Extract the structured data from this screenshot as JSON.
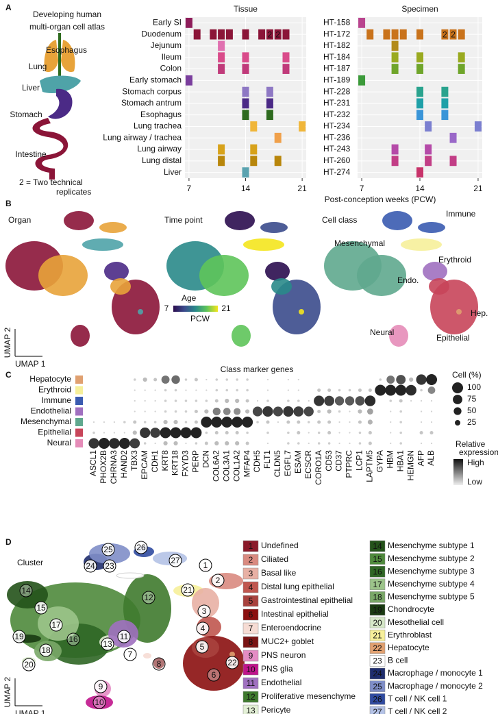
{
  "panel_labels": [
    "A",
    "B",
    "C",
    "D"
  ],
  "panel_a": {
    "title_lines": [
      "Developing human",
      "multi-organ cell atlas"
    ],
    "organs": [
      {
        "label": "Esophagus",
        "color": "#3a7d2c"
      },
      {
        "label": "Lung",
        "color": "#e8a33a"
      },
      {
        "label": "Liver",
        "color": "#4fa3a8"
      },
      {
        "label": "Stomach",
        "color": "#4b2a86"
      },
      {
        "label": "Intestine",
        "color": "#8b1538"
      }
    ],
    "note_lines": [
      "2 = Two technical",
      "replicates"
    ],
    "x_label": "Post-conception weeks (PCW)",
    "grids": [
      {
        "title": "Tissue",
        "xlim": [
          6.5,
          21.5
        ],
        "xticks": [
          7,
          14,
          21
        ],
        "rows": [
          {
            "label": "Early SI",
            "color": "#8e1d5a",
            "weeks": [
              7
            ]
          },
          {
            "label": "Duodenum",
            "color": "#8b1538",
            "weeks": [
              8,
              10,
              11,
              12,
              14,
              16,
              17,
              18,
              19
            ],
            "replicates": [
              {
                "week": 17,
                "count": 2
              },
              {
                "week": 18,
                "count": 2
              }
            ]
          },
          {
            "label": "Jejunum",
            "color": "#e070b0",
            "weeks": [
              11
            ]
          },
          {
            "label": "Ileum",
            "color": "#d94b8a",
            "weeks": [
              11,
              14,
              19
            ]
          },
          {
            "label": "Colon",
            "color": "#c03a7a",
            "weeks": [
              11,
              14,
              19
            ]
          },
          {
            "label": "Early stomach",
            "color": "#7a3e9d",
            "weeks": [
              7
            ]
          },
          {
            "label": "Stomach corpus",
            "color": "#8e78c4",
            "weeks": [
              14,
              17
            ]
          },
          {
            "label": "Stomach antrum",
            "color": "#4b2a86",
            "weeks": [
              14,
              17
            ]
          },
          {
            "label": "Esophagus",
            "color": "#2e6b1f",
            "weeks": [
              14,
              17
            ]
          },
          {
            "label": "Lung trachea",
            "color": "#f0b63a",
            "weeks": [
              15,
              21
            ]
          },
          {
            "label": "Lung airway / trachea",
            "color": "#f0a04a",
            "weeks": [
              18
            ]
          },
          {
            "label": "Lung airway",
            "color": "#d7a21a",
            "weeks": [
              11,
              15
            ]
          },
          {
            "label": "Lung distal",
            "color": "#b8860b",
            "weeks": [
              11,
              15,
              18
            ]
          },
          {
            "label": "Liver",
            "color": "#5aa3b0",
            "weeks": [
              14
            ]
          }
        ]
      },
      {
        "title": "Specimen",
        "xlim": [
          6.5,
          21.5
        ],
        "xticks": [
          7,
          14,
          21
        ],
        "rows": [
          {
            "label": "HT-158",
            "color": "#b9448e",
            "weeks": [
              7
            ]
          },
          {
            "label": "HT-172",
            "color": "#c9731c",
            "weeks": [
              8,
              10,
              11,
              12,
              14,
              17,
              18,
              19
            ],
            "replicates": [
              {
                "week": 17,
                "count": 2
              },
              {
                "week": 18,
                "count": 2
              }
            ]
          },
          {
            "label": "HT-182",
            "color": "#b28b1a",
            "weeks": [
              11
            ]
          },
          {
            "label": "HT-184",
            "color": "#9aaa20",
            "weeks": [
              11,
              14,
              19
            ]
          },
          {
            "label": "HT-187",
            "color": "#6fa52a",
            "weeks": [
              11,
              14,
              19
            ]
          },
          {
            "label": "HT-189",
            "color": "#3c9a3a",
            "weeks": [
              7
            ]
          },
          {
            "label": "HT-228",
            "color": "#2aa38e",
            "weeks": [
              14,
              17
            ]
          },
          {
            "label": "HT-231",
            "color": "#1ea0a8",
            "weeks": [
              14,
              17
            ]
          },
          {
            "label": "HT-232",
            "color": "#3a95d8",
            "weeks": [
              14,
              17
            ]
          },
          {
            "label": "HT-234",
            "color": "#7b7fd0",
            "weeks": [
              15,
              21
            ]
          },
          {
            "label": "HT-236",
            "color": "#9a68c8",
            "weeks": [
              18
            ]
          },
          {
            "label": "HT-243",
            "color": "#b54aa8",
            "weeks": [
              11,
              15
            ]
          },
          {
            "label": "HT-260",
            "color": "#c23e86",
            "weeks": [
              11,
              15,
              18
            ]
          },
          {
            "label": "HT-274",
            "color": "#c8336a",
            "weeks": [
              14
            ]
          }
        ]
      }
    ]
  },
  "panel_b": {
    "titles": [
      "Organ",
      "Time point",
      "Cell class"
    ],
    "colorbar_title": "Age",
    "colorbar_unit": "PCW",
    "colorbar_ticks": [
      7,
      21
    ],
    "colormap": [
      "#2b0d4f",
      "#3b4b8c",
      "#2a8a8a",
      "#5ec45a",
      "#f4e61e"
    ],
    "class_labels": [
      "Immune",
      "Mesenchymal",
      "Erythroid",
      "Endo.",
      "Hep.",
      "Neural",
      "Epithelial"
    ],
    "axis_labels": [
      "UMAP 2",
      "UMAP 1"
    ]
  },
  "panel_c": {
    "title": "Class marker genes",
    "categories": [
      "ASCL1",
      "PHOX2B",
      "CHRNA3",
      "HAND2",
      "TBX3",
      "EPCAM",
      "CDH1",
      "KRT8",
      "KRT18",
      "FXYD3",
      "PERP",
      "DCN",
      "COL6A2",
      "COL3A1",
      "COL1A2",
      "MFAP4",
      "CDH5",
      "FLT1",
      "CLDN5",
      "EGFL7",
      "ESAM",
      "ECSCR",
      "CORO1A",
      "CD53",
      "CD37",
      "PTPRC",
      "LCP1",
      "LAPTM5",
      "GYPA",
      "HBM",
      "HBA1",
      "HEMGN",
      "AFP",
      "ALB"
    ],
    "rows": [
      {
        "name": "Hepatocyte",
        "color": "#e0a070",
        "values": [
          0,
          0,
          0,
          0,
          5,
          15,
          10,
          55,
          60,
          5,
          10,
          2,
          5,
          5,
          5,
          5,
          0,
          2,
          0,
          2,
          2,
          0,
          0,
          0,
          0,
          0,
          0,
          0,
          5,
          55,
          75,
          15,
          90,
          100
        ]
      },
      {
        "name": "Erythroid",
        "color": "#f6ef9a",
        "values": [
          0,
          0,
          0,
          0,
          2,
          2,
          2,
          5,
          5,
          2,
          2,
          2,
          5,
          5,
          5,
          5,
          0,
          2,
          0,
          2,
          2,
          0,
          10,
          10,
          5,
          5,
          10,
          10,
          100,
          100,
          100,
          95,
          5,
          45
        ]
      },
      {
        "name": "Immune",
        "color": "#3a5bb0",
        "values": [
          0,
          0,
          0,
          0,
          2,
          2,
          2,
          5,
          5,
          5,
          5,
          5,
          10,
          15,
          15,
          10,
          2,
          5,
          0,
          5,
          5,
          2,
          90,
          85,
          70,
          70,
          75,
          95,
          0,
          5,
          10,
          2,
          2,
          2
        ]
      },
      {
        "name": "Endothelial",
        "color": "#a070c0",
        "values": [
          0,
          0,
          0,
          0,
          2,
          2,
          2,
          5,
          5,
          5,
          10,
          15,
          50,
          45,
          40,
          15,
          80,
          90,
          80,
          90,
          85,
          80,
          10,
          15,
          5,
          2,
          15,
          30,
          0,
          2,
          5,
          0,
          2,
          2
        ]
      },
      {
        "name": "Mesenchymal",
        "color": "#5fa88e",
        "values": [
          2,
          2,
          2,
          5,
          10,
          5,
          5,
          15,
          15,
          5,
          10,
          100,
          100,
          100,
          100,
          100,
          5,
          10,
          2,
          10,
          10,
          5,
          10,
          10,
          2,
          2,
          10,
          20,
          0,
          2,
          5,
          0,
          2,
          2
        ]
      },
      {
        "name": "Epithelial",
        "color": "#c8455a",
        "values": [
          5,
          2,
          2,
          2,
          15,
          90,
          85,
          100,
          100,
          100,
          100,
          5,
          10,
          10,
          10,
          5,
          0,
          5,
          0,
          5,
          10,
          2,
          5,
          10,
          2,
          2,
          5,
          10,
          0,
          2,
          5,
          0,
          10,
          10
        ]
      },
      {
        "name": "Neural",
        "color": "#e58cb8",
        "values": [
          90,
          100,
          95,
          100,
          85,
          5,
          2,
          15,
          15,
          2,
          5,
          10,
          15,
          15,
          15,
          10,
          0,
          2,
          0,
          5,
          5,
          2,
          5,
          5,
          2,
          2,
          5,
          10,
          0,
          2,
          5,
          0,
          2,
          2
        ]
      }
    ],
    "size_legend": {
      "title": "Cell (%)",
      "values": [
        100,
        75,
        50,
        25
      ]
    },
    "color_legend": {
      "title_lines": [
        "Relative",
        "expression"
      ],
      "high": "High",
      "low": "Low"
    }
  },
  "panel_d": {
    "title": "Cluster",
    "axis_labels": [
      "UMAP 2",
      "UMAP 1"
    ],
    "clusters": [
      {
        "id": 1,
        "name": "Undefined",
        "color": "#8b1a2a"
      },
      {
        "id": 2,
        "name": "Ciliated",
        "color": "#d98a80"
      },
      {
        "id": 3,
        "name": "Basal like",
        "color": "#e8b0a4"
      },
      {
        "id": 4,
        "name": "Distal lung epithelial",
        "color": "#c0574f"
      },
      {
        "id": 5,
        "name": "Gastrointestinal epithelial",
        "color": "#a8423e"
      },
      {
        "id": 6,
        "name": "Intestinal epithelial",
        "color": "#8b1010"
      },
      {
        "id": 7,
        "name": "Enteroendocrine",
        "color": "#f6dcd4"
      },
      {
        "id": 8,
        "name": "MUC2+ goblet",
        "color": "#7a1414"
      },
      {
        "id": 9,
        "name": "PNS neuron",
        "color": "#e48cc4"
      },
      {
        "id": 10,
        "name": "PNS glia",
        "color": "#c0158c"
      },
      {
        "id": 11,
        "name": "Endothelial",
        "color": "#a070c0"
      },
      {
        "id": 12,
        "name": "Proliferative mesenchyme",
        "color": "#3f7a2e"
      },
      {
        "id": 13,
        "name": "Pericyte",
        "color": "#e3f0d6"
      },
      {
        "id": 14,
        "name": "Mesenchyme subtype 1",
        "color": "#24521a"
      },
      {
        "id": 15,
        "name": "Mesenchyme subtype 2",
        "color": "#4f8a3c"
      },
      {
        "id": 16,
        "name": "Mesenchyme subtype 3",
        "color": "#2f6625"
      },
      {
        "id": 17,
        "name": "Mesenchyme subtype 4",
        "color": "#9cc48a"
      },
      {
        "id": 18,
        "name": "Mesenchyme subtype 5",
        "color": "#7aa868"
      },
      {
        "id": 19,
        "name": "Chondrocyte",
        "color": "#1a3a12"
      },
      {
        "id": 20,
        "name": "Mesothelial cell",
        "color": "#d6e8c8"
      },
      {
        "id": 21,
        "name": "Erythroblast",
        "color": "#f6ef9a"
      },
      {
        "id": 22,
        "name": "Hepatocyte",
        "color": "#e0a070"
      },
      {
        "id": 23,
        "name": "B cell",
        "color": "#ffffff"
      },
      {
        "id": 24,
        "name": "Macrophage / monocyte 1",
        "color": "#1f2d6e"
      },
      {
        "id": 25,
        "name": "Macrophage / monocyte 2",
        "color": "#7f8ec8"
      },
      {
        "id": 26,
        "name": "T cell / NK cell 1",
        "color": "#2f4aa0"
      },
      {
        "id": 27,
        "name": "T cell / NK cell 2",
        "color": "#b4c2e6"
      }
    ]
  }
}
